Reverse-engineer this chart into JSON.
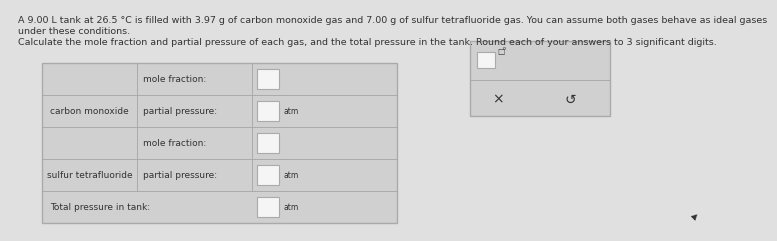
{
  "title_line1": "A 9.00 L tank at 26.5 °C is filled with 3.97 g of carbon monoxide gas and 7.00 g of sulfur tetrafluoride gas. You can assume both gases behave as ideal gases",
  "title_line2": "under these conditions.",
  "subtitle": "Calculate the mole fraction and partial pressure of each gas, and the total pressure in the tank. Round each of your answers to 3 significant digits.",
  "row1_label": "carbon monoxide",
  "row2_label": "sulfur tetrafluoride",
  "mole_fraction_label": "mole fraction:",
  "partial_pressure_label": "partial pressure:",
  "total_pressure_label": "Total pressure in tank:",
  "atm_label": "atm",
  "bg_color": "#e0e0e0",
  "table_bg": "#d0d0d0",
  "cell_input_bg": "#f5f5f5",
  "border_color": "#aaaaaa",
  "text_color": "#333333",
  "popup_bg": "#d0d0d0",
  "popup_border": "#aaaaaa",
  "font_size_title": 6.8,
  "font_size_table": 6.5,
  "font_size_atm": 5.5
}
